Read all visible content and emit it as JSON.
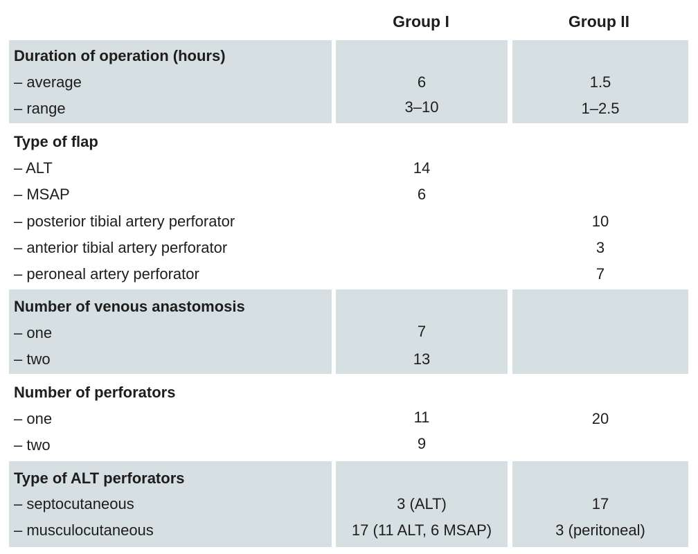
{
  "header": {
    "group1": "Group I",
    "group2": "Group II"
  },
  "sections": [
    {
      "title": "Duration of operation (hours)",
      "rows": [
        {
          "label": "– average",
          "g1": "6",
          "g2": "1.5"
        },
        {
          "label": "– range",
          "g1": "3–10",
          "g2": "1–2.5"
        }
      ]
    },
    {
      "title": "Type of flap",
      "rows": [
        {
          "label": "– ALT",
          "g1": "14",
          "g2": ""
        },
        {
          "label": "– MSAP",
          "g1": "6",
          "g2": ""
        },
        {
          "label": "– posterior tibial artery perforator",
          "g1": "",
          "g2": "10"
        },
        {
          "label": "– anterior tibial artery perforator",
          "g1": "",
          "g2": "3"
        },
        {
          "label": "– peroneal artery perforator",
          "g1": "",
          "g2": "7"
        }
      ]
    },
    {
      "title": "Number of venous anastomosis",
      "rows": [
        {
          "label": "– one",
          "g1": "7",
          "g2": ""
        },
        {
          "label": "– two",
          "g1": "13",
          "g2": ""
        }
      ]
    },
    {
      "title": "Number of perforators",
      "rows": [
        {
          "label": "– one",
          "g1": "11",
          "g2": "20"
        },
        {
          "label": "– two",
          "g1": "9",
          "g2": ""
        }
      ]
    },
    {
      "title": "Type of ALT perforators",
      "rows": [
        {
          "label": "– septocutaneous",
          "g1": "3 (ALT)",
          "g2": "17"
        },
        {
          "label": "– musculocutaneous",
          "g1": "17 (11 ALT, 6 MSAP)",
          "g2": "3 (peritoneal)"
        }
      ]
    }
  ]
}
